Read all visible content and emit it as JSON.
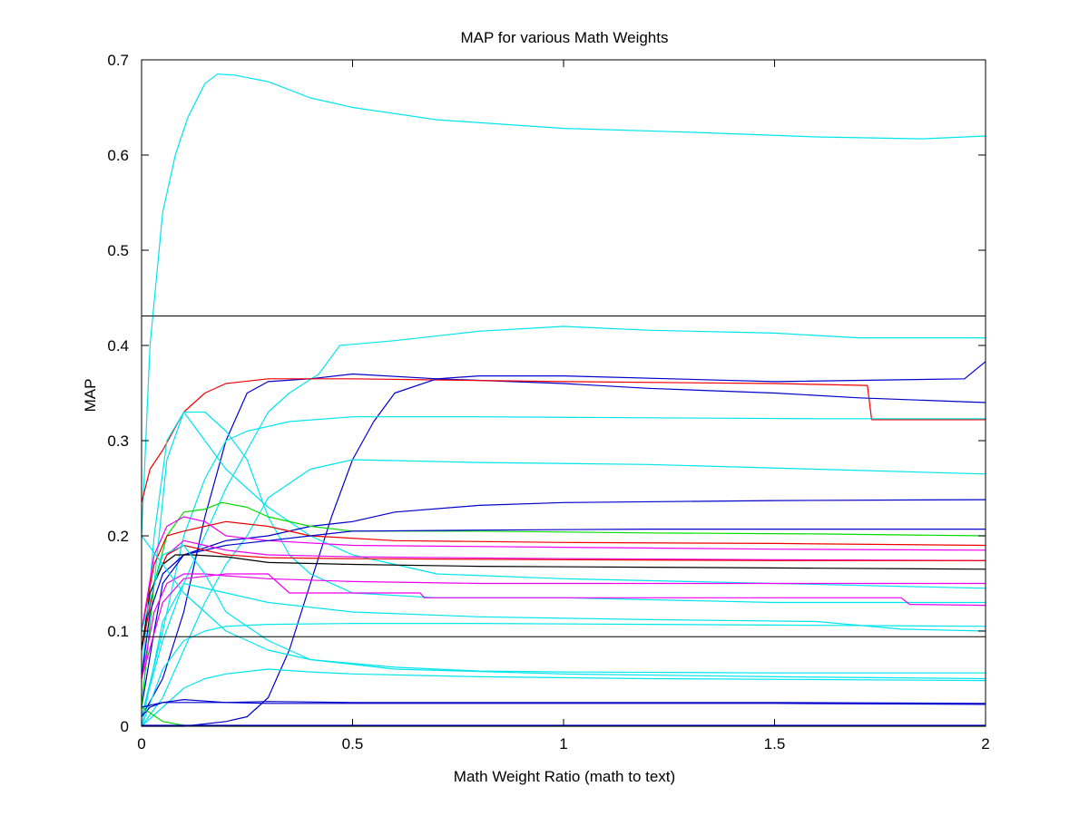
{
  "chart_data": {
    "type": "line",
    "title": "MAP for various Math Weights",
    "xlabel": "Math Weight Ratio (math to text)",
    "ylabel": "MAP",
    "xlim": [
      0,
      2
    ],
    "ylim": [
      0,
      0.7
    ],
    "xticks": [
      0,
      0.5,
      1,
      1.5,
      2
    ],
    "xtick_labels": [
      "0",
      "0.5",
      "1",
      "1.5",
      "2"
    ],
    "yticks": [
      0,
      0.1,
      0.2,
      0.3,
      0.4,
      0.5,
      0.6,
      0.7
    ],
    "ytick_labels": [
      "0",
      "0.1",
      "0.2",
      "0.3",
      "0.4",
      "0.5",
      "0.6",
      "0.7"
    ],
    "grid": false,
    "legend": "none",
    "reference_lines": [
      0.431,
      0.094
    ],
    "colors": {
      "cyan": "#00e5ee",
      "blue": "#0000cc",
      "red": "#ee0000",
      "green": "#00dd00",
      "magenta": "#ee00ee",
      "black": "#000000"
    },
    "series": [
      {
        "color": "cyan",
        "x": [
          0,
          0.02,
          0.05,
          0.08,
          0.11,
          0.15,
          0.18,
          0.22,
          0.3,
          0.4,
          0.5,
          0.7,
          1.0,
          1.3,
          1.6,
          1.85,
          2.0
        ],
        "y": [
          0.2,
          0.4,
          0.54,
          0.6,
          0.64,
          0.675,
          0.685,
          0.684,
          0.677,
          0.66,
          0.65,
          0.637,
          0.628,
          0.624,
          0.619,
          0.617,
          0.62
        ]
      },
      {
        "color": "cyan",
        "x": [
          0,
          0.05,
          0.1,
          0.2,
          0.3,
          0.35,
          0.42,
          0.47,
          0.6,
          0.8,
          1.0,
          1.2,
          1.5,
          1.7,
          2.0
        ],
        "y": [
          0.01,
          0.09,
          0.15,
          0.25,
          0.33,
          0.35,
          0.37,
          0.4,
          0.405,
          0.415,
          0.42,
          0.416,
          0.413,
          0.408,
          0.408
        ]
      },
      {
        "color": "blue",
        "x": [
          0,
          0.05,
          0.1,
          0.15,
          0.2,
          0.25,
          0.3,
          0.4,
          0.5,
          0.7,
          1.0,
          1.2,
          1.5,
          1.7,
          2.0
        ],
        "y": [
          0.01,
          0.05,
          0.12,
          0.22,
          0.3,
          0.35,
          0.362,
          0.365,
          0.37,
          0.365,
          0.36,
          0.355,
          0.35,
          0.345,
          0.34
        ]
      },
      {
        "color": "red",
        "x": [
          0,
          0.02,
          0.05,
          0.1,
          0.15,
          0.2,
          0.3,
          0.5,
          1.0,
          1.5,
          1.72,
          1.73,
          2.0
        ],
        "y": [
          0.235,
          0.27,
          0.29,
          0.33,
          0.35,
          0.36,
          0.365,
          0.365,
          0.362,
          0.36,
          0.358,
          0.322,
          0.322
        ]
      },
      {
        "color": "blue",
        "x": [
          0,
          0.1,
          0.2,
          0.25,
          0.3,
          0.35,
          0.4,
          0.45,
          0.5,
          0.55,
          0.6,
          0.7,
          0.8,
          1.0,
          1.5,
          1.95,
          2.0
        ],
        "y": [
          0,
          0,
          0.005,
          0.01,
          0.03,
          0.08,
          0.15,
          0.22,
          0.28,
          0.32,
          0.35,
          0.365,
          0.368,
          0.368,
          0.362,
          0.365,
          0.383
        ]
      },
      {
        "color": "cyan",
        "x": [
          0,
          0.03,
          0.06,
          0.1,
          0.15,
          0.2,
          0.25,
          0.3,
          0.35,
          0.4,
          0.5,
          0.7,
          1.0,
          1.5,
          2.0
        ],
        "y": [
          0.02,
          0.15,
          0.28,
          0.33,
          0.33,
          0.31,
          0.28,
          0.22,
          0.18,
          0.16,
          0.14,
          0.135,
          0.135,
          0.13,
          0.13
        ]
      },
      {
        "color": "cyan",
        "x": [
          0,
          0.03,
          0.06,
          0.1,
          0.15,
          0.2,
          0.3,
          0.4,
          0.5,
          0.7,
          1.0,
          1.5,
          2.0
        ],
        "y": [
          0.05,
          0.2,
          0.3,
          0.33,
          0.3,
          0.27,
          0.23,
          0.2,
          0.18,
          0.16,
          0.155,
          0.15,
          0.145
        ]
      },
      {
        "color": "cyan",
        "x": [
          0,
          0.05,
          0.1,
          0.15,
          0.2,
          0.25,
          0.3,
          0.35,
          0.5,
          0.8,
          1.2,
          1.6,
          2.0
        ],
        "y": [
          0.01,
          0.1,
          0.2,
          0.26,
          0.3,
          0.31,
          0.315,
          0.32,
          0.325,
          0.325,
          0.324,
          0.323,
          0.323
        ]
      },
      {
        "color": "cyan",
        "x": [
          0,
          0.05,
          0.1,
          0.15,
          0.2,
          0.25,
          0.3,
          0.4,
          0.5,
          0.8,
          1.2,
          1.6,
          2.0
        ],
        "y": [
          0,
          0.03,
          0.08,
          0.13,
          0.17,
          0.2,
          0.24,
          0.27,
          0.28,
          0.277,
          0.275,
          0.27,
          0.265
        ]
      },
      {
        "color": "blue",
        "x": [
          0,
          0.03,
          0.05,
          0.1,
          0.2,
          0.3,
          0.4,
          0.5,
          0.6,
          0.8,
          1.0,
          1.5,
          2.0
        ],
        "y": [
          0.02,
          0.1,
          0.15,
          0.18,
          0.195,
          0.2,
          0.21,
          0.215,
          0.225,
          0.232,
          0.235,
          0.237,
          0.238
        ]
      },
      {
        "color": "green",
        "x": [
          0,
          0.03,
          0.06,
          0.1,
          0.15,
          0.19,
          0.25,
          0.3,
          0.4,
          0.5,
          0.8,
          1.2,
          1.6,
          2.0
        ],
        "y": [
          0.02,
          0.15,
          0.2,
          0.225,
          0.228,
          0.235,
          0.23,
          0.22,
          0.21,
          0.205,
          0.205,
          0.203,
          0.202,
          0.2
        ]
      },
      {
        "color": "red",
        "x": [
          0,
          0.03,
          0.06,
          0.1,
          0.15,
          0.2,
          0.3,
          0.4,
          0.6,
          1.0,
          1.5,
          2.0
        ],
        "y": [
          0.1,
          0.17,
          0.2,
          0.205,
          0.21,
          0.215,
          0.21,
          0.2,
          0.195,
          0.193,
          0.192,
          0.19
        ]
      },
      {
        "color": "magenta",
        "x": [
          0,
          0.03,
          0.06,
          0.1,
          0.15,
          0.2,
          0.3,
          0.5,
          1.0,
          1.5,
          2.0
        ],
        "y": [
          0.1,
          0.18,
          0.21,
          0.22,
          0.215,
          0.2,
          0.195,
          0.19,
          0.188,
          0.186,
          0.185
        ]
      },
      {
        "color": "blue",
        "x": [
          0,
          0.02,
          0.05,
          0.1,
          0.2,
          0.3,
          0.4,
          0.5,
          0.8,
          1.2,
          1.6,
          2.0
        ],
        "y": [
          0.05,
          0.12,
          0.16,
          0.18,
          0.19,
          0.195,
          0.2,
          0.205,
          0.206,
          0.207,
          0.207,
          0.207
        ]
      },
      {
        "color": "magenta",
        "x": [
          0,
          0.03,
          0.06,
          0.1,
          0.15,
          0.2,
          0.3,
          0.5,
          1.0,
          1.5,
          2.0
        ],
        "y": [
          0.08,
          0.15,
          0.18,
          0.195,
          0.19,
          0.185,
          0.18,
          0.178,
          0.176,
          0.175,
          0.174
        ]
      },
      {
        "color": "red",
        "x": [
          0,
          0.03,
          0.06,
          0.1,
          0.15,
          0.2,
          0.3,
          0.5,
          1.0,
          1.5,
          2.0
        ],
        "y": [
          0.08,
          0.15,
          0.18,
          0.19,
          0.185,
          0.18,
          0.177,
          0.176,
          0.175,
          0.174,
          0.174
        ]
      },
      {
        "color": "black",
        "x": [
          0,
          0.02,
          0.05,
          0.08,
          0.12,
          0.2,
          0.3,
          0.5,
          0.8,
          1.2,
          1.6,
          2.0
        ],
        "y": [
          0.08,
          0.14,
          0.17,
          0.18,
          0.18,
          0.178,
          0.172,
          0.17,
          0.168,
          0.167,
          0.166,
          0.165
        ]
      },
      {
        "color": "magenta",
        "x": [
          0,
          0.03,
          0.06,
          0.1,
          0.15,
          0.2,
          0.3,
          0.5,
          0.8,
          1.2,
          1.6,
          2.0
        ],
        "y": [
          0.05,
          0.12,
          0.15,
          0.16,
          0.16,
          0.158,
          0.155,
          0.152,
          0.15,
          0.15,
          0.15,
          0.15
        ]
      },
      {
        "color": "magenta",
        "x": [
          0,
          0.05,
          0.1,
          0.2,
          0.3,
          0.35,
          0.5,
          0.66,
          0.67,
          1.0,
          1.5,
          1.8,
          1.82,
          2.0
        ],
        "y": [
          0.05,
          0.13,
          0.155,
          0.16,
          0.16,
          0.14,
          0.14,
          0.14,
          0.135,
          0.135,
          0.135,
          0.135,
          0.128,
          0.127
        ]
      },
      {
        "color": "cyan",
        "x": [
          0,
          0.05,
          0.1,
          0.15,
          0.2,
          0.3,
          0.4,
          0.6,
          0.8,
          1.0,
          1.5,
          2.0
        ],
        "y": [
          0.2,
          0.17,
          0.14,
          0.12,
          0.1,
          0.08,
          0.07,
          0.062,
          0.058,
          0.057,
          0.056,
          0.056
        ]
      },
      {
        "color": "cyan",
        "x": [
          0,
          0.05,
          0.1,
          0.15,
          0.2,
          0.3,
          0.4,
          0.6,
          1.0,
          1.5,
          2.0
        ],
        "y": [
          0.1,
          0.18,
          0.19,
          0.16,
          0.12,
          0.09,
          0.07,
          0.06,
          0.055,
          0.052,
          0.05
        ]
      },
      {
        "color": "cyan",
        "x": [
          0,
          0.05,
          0.1,
          0.15,
          0.2,
          0.3,
          0.4,
          0.5,
          0.8,
          1.2,
          1.6,
          2.0
        ],
        "y": [
          0,
          0.02,
          0.04,
          0.05,
          0.055,
          0.06,
          0.057,
          0.055,
          0.052,
          0.05,
          0.049,
          0.048
        ]
      },
      {
        "color": "cyan",
        "x": [
          0,
          0.05,
          0.1,
          0.15,
          0.2,
          0.3,
          0.5,
          0.8,
          1.2,
          1.6,
          2.0
        ],
        "y": [
          0,
          0.06,
          0.09,
          0.1,
          0.105,
          0.107,
          0.108,
          0.108,
          0.107,
          0.106,
          0.105
        ]
      },
      {
        "color": "cyan",
        "x": [
          0,
          0.05,
          0.1,
          0.2,
          0.3,
          0.5,
          0.8,
          1.2,
          1.6,
          1.8,
          2.0
        ],
        "y": [
          0,
          0.11,
          0.15,
          0.14,
          0.13,
          0.12,
          0.115,
          0.112,
          0.11,
          0.102,
          0.1
        ]
      },
      {
        "color": "blue",
        "x": [
          0,
          0.02,
          0.05,
          0.1,
          0.2,
          0.3,
          0.5,
          1.0,
          1.5,
          2.0
        ],
        "y": [
          0.01,
          0.02,
          0.025,
          0.028,
          0.025,
          0.026,
          0.025,
          0.025,
          0.025,
          0.024
        ]
      },
      {
        "color": "blue",
        "x": [
          0,
          0.05,
          0.1,
          0.2,
          0.3,
          0.5,
          1.0,
          1.5,
          2.0
        ],
        "y": [
          0.02,
          0.025,
          0.025,
          0.025,
          0.024,
          0.024,
          0.024,
          0.024,
          0.023
        ]
      },
      {
        "color": "green",
        "x": [
          0,
          0.05,
          0.1,
          0.2,
          0.5,
          1.0,
          2.0
        ],
        "y": [
          0.02,
          0.005,
          0.001,
          0,
          0,
          0,
          0
        ]
      },
      {
        "color": "blue",
        "x": [
          0,
          0.5,
          1.0,
          1.5,
          2.0
        ],
        "y": [
          0.001,
          0.001,
          0.001,
          0.001,
          0.001
        ]
      }
    ]
  }
}
